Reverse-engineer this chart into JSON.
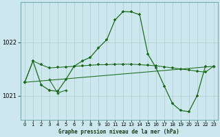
{
  "title": "Graphe pression niveau de la mer (hPa)",
  "bg_color": "#cce8ee",
  "grid_color": "#aacccc",
  "line_color": "#1a6b1a",
  "xlim": [
    -0.5,
    23.5
  ],
  "ylim": [
    1020.55,
    1022.75
  ],
  "yticks": [
    1021,
    1022
  ],
  "xticks": [
    0,
    1,
    2,
    3,
    4,
    5,
    6,
    7,
    8,
    9,
    10,
    11,
    12,
    13,
    14,
    15,
    16,
    17,
    18,
    19,
    20,
    21,
    22,
    23
  ],
  "line_main": [
    1021.25,
    1021.65,
    1021.2,
    1021.1,
    1021.08,
    1021.3,
    1021.55,
    1021.65,
    1021.72,
    1021.9,
    1022.05,
    1022.42,
    1022.58,
    1022.57,
    1022.52,
    1021.78,
    1021.52,
    1021.18,
    1020.85,
    1020.72,
    1020.7,
    1021.0,
    1021.55,
    null
  ],
  "line_flat": [
    1021.25,
    1021.65,
    1021.58,
    1021.52,
    1021.53,
    1021.54,
    1021.55,
    1021.56,
    1021.57,
    1021.58,
    1021.58,
    1021.59,
    1021.59,
    1021.59,
    1021.58,
    1021.57,
    1021.56,
    1021.54,
    1021.52,
    1021.5,
    1021.48,
    1021.46,
    1021.44,
    1021.55
  ],
  "line_diag1": [
    1021.25,
    null,
    null,
    null,
    null,
    null,
    null,
    null,
    null,
    null,
    null,
    null,
    null,
    null,
    null,
    null,
    null,
    null,
    null,
    null,
    null,
    null,
    null,
    1021.55
  ],
  "line_diag2": [
    null,
    null,
    null,
    1021.3,
    1021.05,
    1021.1,
    null,
    null,
    null,
    null,
    null,
    null,
    null,
    null,
    null,
    null,
    null,
    null,
    null,
    null,
    null,
    null,
    null,
    null
  ]
}
